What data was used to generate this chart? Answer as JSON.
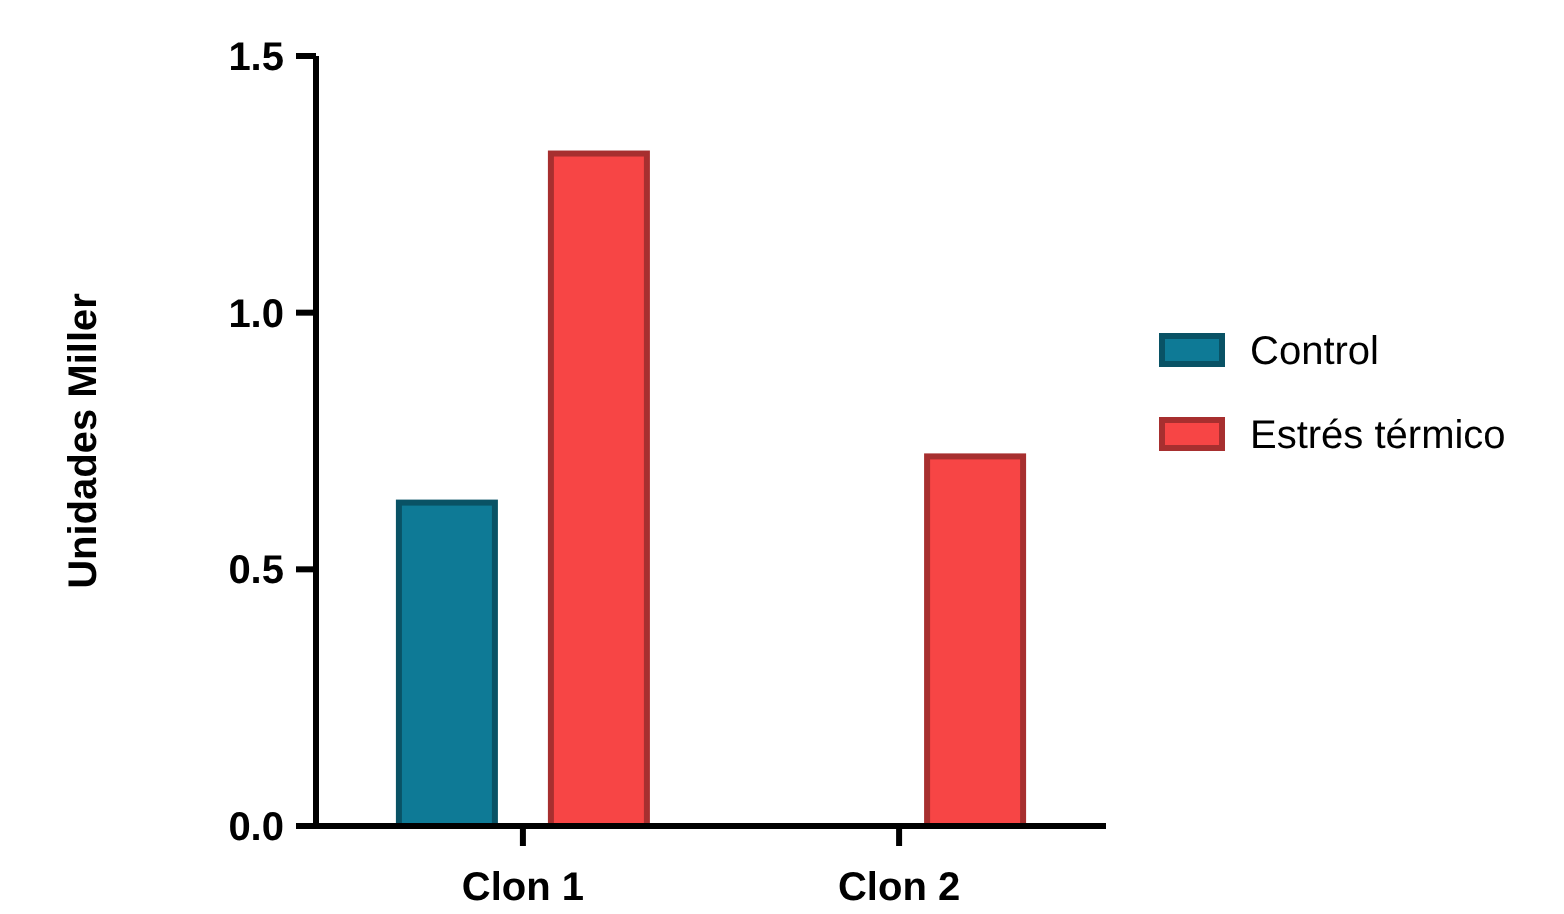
{
  "chart_data": {
    "type": "bar",
    "ylabel": "Unidades Miller",
    "categories": [
      "Clon 1",
      "Clon 2"
    ],
    "series": [
      {
        "name": "Control",
        "color": "#0e7a96",
        "values": [
          0.63,
          0
        ]
      },
      {
        "name": "Estrés térmico",
        "color": "#f74545",
        "values": [
          1.31,
          0.72
        ]
      }
    ],
    "ylim": [
      0,
      1.5
    ],
    "yticks": [
      {
        "value": 0,
        "label": "0.0"
      },
      {
        "value": 0.5,
        "label": "0.5"
      },
      {
        "value": 1,
        "label": "1.0"
      },
      {
        "value": 1.5,
        "label": "1.5"
      }
    ],
    "grid": false,
    "legend": "right"
  }
}
